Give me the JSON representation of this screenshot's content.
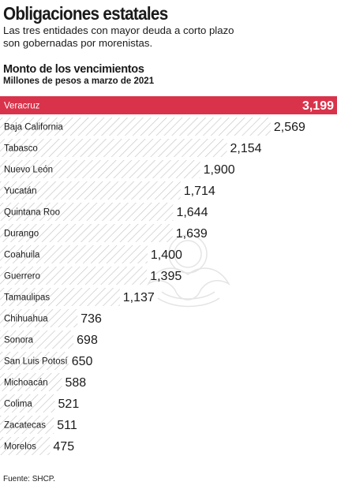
{
  "header": {
    "title": "Obligaciones estatales",
    "subtitle": "Las tres entidades con mayor deuda a corto plazo son gobernadas por morenistas."
  },
  "chart_data": {
    "type": "bar",
    "orientation": "horizontal",
    "title": "Monto de los vencimientos",
    "subtitle": "Millones de pesos a marzo de 2021",
    "xlabel": "",
    "ylabel": "",
    "categories": [
      "Veracruz",
      "Baja California",
      "Tabasco",
      "Nuevo León",
      "Yucatán",
      "Quintana Roo",
      "Durango",
      "Coahuila",
      "Guerrero",
      "Tamaulipas",
      "Chihuahua",
      "Sonora",
      "San Luis Potosí",
      "Michoacán",
      "Colima",
      "Zacatecas",
      "Morelos"
    ],
    "values": [
      3199,
      2569,
      2154,
      1900,
      1714,
      1644,
      1639,
      1400,
      1395,
      1137,
      736,
      698,
      650,
      588,
      521,
      511,
      475
    ],
    "value_labels": [
      "3,199",
      "2,569",
      "2,154",
      "1,900",
      "1,714",
      "1,644",
      "1,639",
      "1,400",
      "1,395",
      "1,137",
      "736",
      "698",
      "650",
      "588",
      "521",
      "511",
      "475"
    ],
    "highlight_index": 0,
    "grid": false,
    "legend": "none"
  },
  "colors": {
    "highlight": "#d9334b",
    "hatch": "#c4c4c4",
    "text": "#1a1a1a"
  },
  "source": "Fuente: SHCP."
}
